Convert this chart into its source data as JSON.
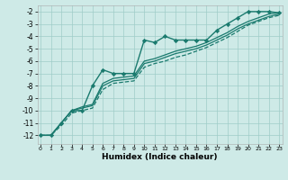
{
  "xlabel": "Humidex (Indice chaleur)",
  "background_color": "#ceeae7",
  "grid_color": "#a0ccc8",
  "line_color": "#1a7a6e",
  "x_ticks": [
    0,
    1,
    2,
    3,
    4,
    5,
    6,
    7,
    8,
    9,
    10,
    11,
    12,
    13,
    14,
    15,
    16,
    17,
    18,
    19,
    20,
    21,
    22,
    23
  ],
  "y_ticks": [
    -12,
    -11,
    -10,
    -9,
    -8,
    -7,
    -6,
    -5,
    -4,
    -3,
    -2
  ],
  "xlim": [
    -0.3,
    23.3
  ],
  "ylim": [
    -12.7,
    -1.5
  ],
  "series": [
    {
      "x": [
        0,
        1,
        2,
        3,
        4,
        5,
        6,
        7,
        8,
        9,
        10,
        11,
        12,
        13,
        14,
        15,
        16,
        17,
        18,
        19,
        20,
        21,
        22,
        23
      ],
      "y": [
        -12,
        -12,
        -11,
        -10,
        -10,
        -8,
        -6.7,
        -7.0,
        -7.0,
        -7.0,
        -4.3,
        -4.5,
        -4.0,
        -4.3,
        -4.3,
        -4.3,
        -4.3,
        -3.5,
        -3.0,
        -2.5,
        -2.0,
        -2.0,
        -2.0,
        -2.1
      ],
      "marker": "D",
      "markersize": 2.2,
      "linewidth": 1.0,
      "linestyle": "-"
    },
    {
      "x": [
        0,
        1,
        2,
        3,
        4,
        5,
        6,
        7,
        8,
        9,
        10,
        11,
        12,
        13,
        14,
        15,
        16,
        17,
        18,
        19,
        20,
        21,
        22,
        23
      ],
      "y": [
        -12,
        -12,
        -11,
        -10,
        -9.7,
        -9.5,
        -7.8,
        -7.4,
        -7.3,
        -7.2,
        -6.0,
        -5.8,
        -5.5,
        -5.2,
        -5.0,
        -4.8,
        -4.5,
        -4.1,
        -3.7,
        -3.2,
        -2.8,
        -2.5,
        -2.2,
        -2.1
      ],
      "marker": null,
      "markersize": 0,
      "linewidth": 0.9,
      "linestyle": "-"
    },
    {
      "x": [
        0,
        1,
        2,
        3,
        4,
        5,
        6,
        7,
        8,
        9,
        10,
        11,
        12,
        13,
        14,
        15,
        16,
        17,
        18,
        19,
        20,
        21,
        22,
        23
      ],
      "y": [
        -12,
        -12,
        -11,
        -10,
        -9.8,
        -9.6,
        -8.0,
        -7.6,
        -7.5,
        -7.4,
        -6.2,
        -6.0,
        -5.7,
        -5.4,
        -5.2,
        -5.0,
        -4.7,
        -4.3,
        -3.9,
        -3.4,
        -3.0,
        -2.7,
        -2.4,
        -2.2
      ],
      "marker": null,
      "markersize": 0,
      "linewidth": 0.9,
      "linestyle": "-"
    },
    {
      "x": [
        0,
        1,
        2,
        3,
        4,
        5,
        6,
        7,
        8,
        9,
        10,
        11,
        12,
        13,
        14,
        15,
        16,
        17,
        18,
        19,
        20,
        21,
        22,
        23
      ],
      "y": [
        -12,
        -12,
        -11.2,
        -10.2,
        -10.0,
        -9.8,
        -8.3,
        -7.8,
        -7.7,
        -7.6,
        -6.5,
        -6.2,
        -6.0,
        -5.7,
        -5.5,
        -5.2,
        -4.9,
        -4.5,
        -4.1,
        -3.6,
        -3.1,
        -2.8,
        -2.5,
        -2.3
      ],
      "marker": null,
      "markersize": 0,
      "linewidth": 0.9,
      "linestyle": "--"
    }
  ]
}
